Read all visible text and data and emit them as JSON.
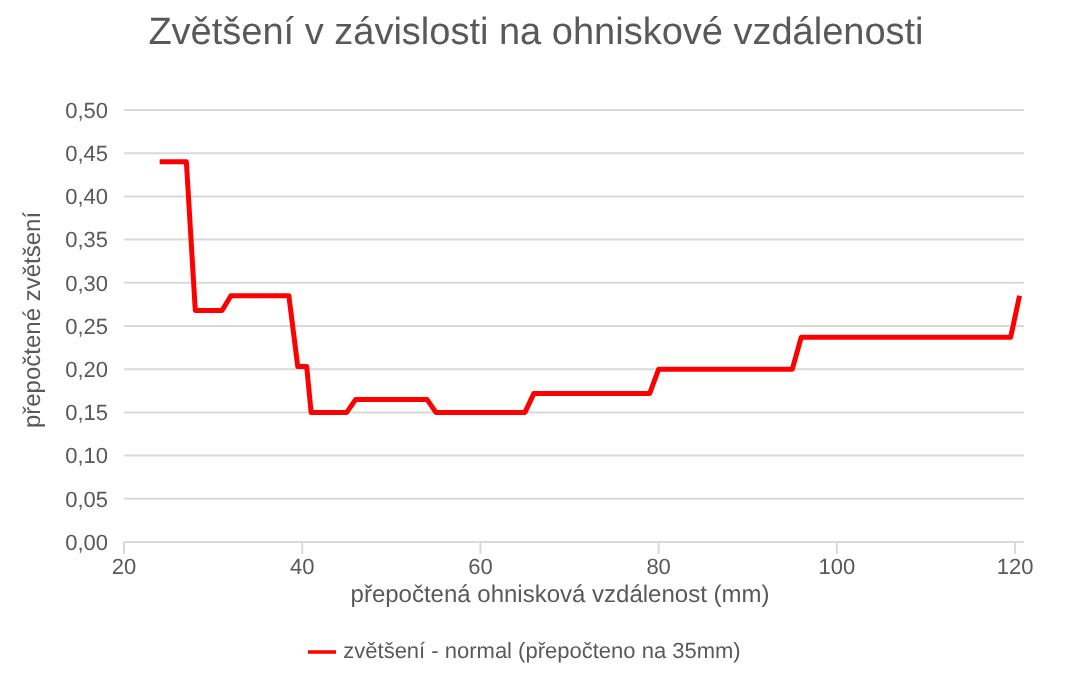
{
  "chart_data": {
    "type": "line",
    "title": "Zvětšení v závislosti na ohniskové vzdálenosti",
    "xlabel": "přepočtená ohnisková vzdálenost (mm)",
    "ylabel": "přepočtené zvětšení",
    "xlim": [
      20,
      121
    ],
    "xticks": [
      20,
      40,
      60,
      80,
      100,
      120
    ],
    "ylim": [
      0,
      0.5
    ],
    "yticks": [
      {
        "value": 0,
        "label": "0,00"
      },
      {
        "value": 0.05,
        "label": "0,05"
      },
      {
        "value": 0.1,
        "label": "0,10"
      },
      {
        "value": 0.15,
        "label": "0,15"
      },
      {
        "value": 0.2,
        "label": "0,20"
      },
      {
        "value": 0.25,
        "label": "0,25"
      },
      {
        "value": 0.3,
        "label": "0,30"
      },
      {
        "value": 0.35,
        "label": "0,35"
      },
      {
        "value": 0.4,
        "label": "0,40"
      },
      {
        "value": 0.45,
        "label": "0,45"
      },
      {
        "value": 0.5,
        "label": "0,50"
      }
    ],
    "grid": "y",
    "legend": "bottom",
    "marker": "none",
    "line_style": "solid",
    "x": [
      24,
      27,
      28,
      31,
      32,
      38.5,
      39.5,
      40.5,
      41,
      45,
      46,
      54,
      55,
      65,
      66,
      79,
      80,
      95,
      96,
      119.5,
      120.5
    ],
    "series": [
      {
        "name": "zvětšení - normal (přepočteno na 35mm)",
        "color": "#ff0000",
        "values": [
          0.44,
          0.44,
          0.268,
          0.268,
          0.285,
          0.285,
          0.203,
          0.203,
          0.15,
          0.15,
          0.165,
          0.165,
          0.15,
          0.15,
          0.172,
          0.172,
          0.2,
          0.2,
          0.237,
          0.237,
          0.285
        ]
      }
    ]
  }
}
